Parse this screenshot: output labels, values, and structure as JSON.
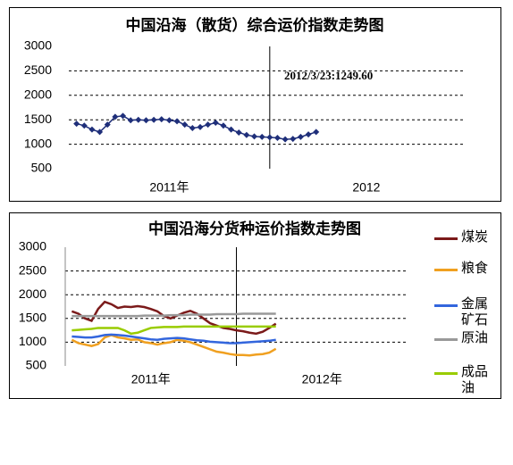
{
  "chart_data": [
    {
      "type": "line",
      "title": "中国沿海（散货）综合运价指数走势图",
      "ylim": [
        500,
        3000
      ],
      "yticks": [
        500,
        1000,
        1500,
        2000,
        2500,
        3000
      ],
      "grid": true,
      "xlim": [
        0,
        102
      ],
      "x_break": 52,
      "x_period_labels": [
        "2011年",
        "2012"
      ],
      "annotation": "2012/3/23:1249.60",
      "markers": true,
      "x": [
        2,
        4,
        6,
        8,
        10,
        12,
        14,
        16,
        18,
        20,
        22,
        24,
        26,
        28,
        30,
        32,
        34,
        36,
        38,
        40,
        42,
        44,
        46,
        48,
        50,
        52,
        54,
        56,
        58,
        60,
        62,
        64
      ],
      "series": [
        {
          "color": "#1f2f7a",
          "values": [
            1420,
            1380,
            1300,
            1250,
            1400,
            1560,
            1580,
            1490,
            1500,
            1490,
            1500,
            1510,
            1490,
            1470,
            1400,
            1330,
            1350,
            1400,
            1440,
            1380,
            1300,
            1240,
            1190,
            1160,
            1150,
            1140,
            1130,
            1100,
            1110,
            1150,
            1200,
            1249.6
          ]
        }
      ]
    },
    {
      "type": "line",
      "title": "中国沿海分货种运价指数走势图",
      "ylim": [
        500,
        3000
      ],
      "yticks": [
        500,
        1000,
        1500,
        2000,
        2500,
        3000
      ],
      "grid": true,
      "xlim": [
        0,
        104
      ],
      "x_break": 52,
      "x_period_labels": [
        "2011年",
        "2012年"
      ],
      "legend": "right",
      "x": [
        2,
        4,
        6,
        8,
        10,
        12,
        14,
        16,
        18,
        20,
        22,
        24,
        26,
        28,
        30,
        32,
        34,
        36,
        38,
        40,
        42,
        44,
        46,
        48,
        50,
        52,
        54,
        56,
        58,
        60,
        62,
        64
      ],
      "series": [
        {
          "name": "煤炭",
          "color": "#7b1a1a",
          "values": [
            1650,
            1600,
            1500,
            1450,
            1700,
            1850,
            1800,
            1720,
            1750,
            1740,
            1760,
            1740,
            1700,
            1650,
            1550,
            1500,
            1560,
            1620,
            1660,
            1600,
            1500,
            1400,
            1350,
            1300,
            1280,
            1250,
            1230,
            1200,
            1180,
            1220,
            1300,
            1390
          ]
        },
        {
          "name": "粮食",
          "color": "#f0a020",
          "values": [
            1050,
            980,
            950,
            920,
            960,
            1100,
            1150,
            1100,
            1080,
            1050,
            1060,
            1000,
            980,
            950,
            980,
            1000,
            1050,
            1030,
            1000,
            950,
            900,
            850,
            800,
            780,
            750,
            730,
            730,
            720,
            740,
            750,
            780,
            860
          ]
        },
        {
          "name": "金属矿石",
          "color": "#3366dd",
          "values": [
            1120,
            1110,
            1100,
            1100,
            1120,
            1150,
            1160,
            1150,
            1140,
            1120,
            1100,
            1080,
            1060,
            1050,
            1070,
            1080,
            1090,
            1080,
            1060,
            1040,
            1030,
            1010,
            1000,
            990,
            980,
            980,
            990,
            1000,
            1010,
            1020,
            1030,
            1050
          ]
        },
        {
          "name": "原油",
          "color": "#999999",
          "values": [
            1550,
            1550,
            1550,
            1550,
            1550,
            1550,
            1550,
            1550,
            1550,
            1550,
            1550,
            1560,
            1560,
            1560,
            1560,
            1570,
            1570,
            1570,
            1580,
            1580,
            1580,
            1580,
            1590,
            1590,
            1590,
            1590,
            1600,
            1600,
            1600,
            1600,
            1600,
            1600
          ]
        },
        {
          "name": "成品油",
          "color": "#99cc00",
          "values": [
            1250,
            1260,
            1270,
            1280,
            1300,
            1300,
            1300,
            1300,
            1250,
            1180,
            1200,
            1250,
            1300,
            1310,
            1320,
            1320,
            1320,
            1330,
            1330,
            1330,
            1330,
            1330,
            1330,
            1330,
            1330,
            1330,
            1330,
            1330,
            1330,
            1330,
            1330,
            1330
          ]
        }
      ]
    }
  ]
}
